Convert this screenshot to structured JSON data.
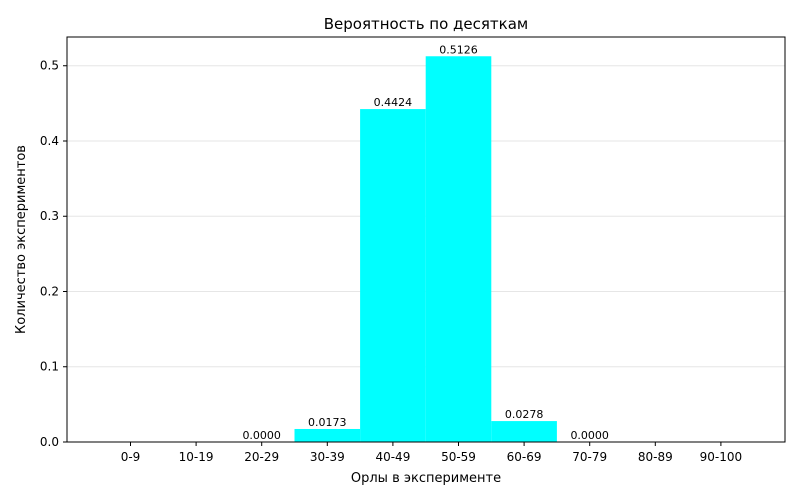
{
  "chart_data": {
    "type": "bar",
    "title": "Вероятность по десяткам",
    "xlabel": "Орлы в эксперименте",
    "ylabel": "Количество экспериментов",
    "categories": [
      "0-9",
      "10-19",
      "20-29",
      "30-39",
      "40-49",
      "50-59",
      "60-69",
      "70-79",
      "80-89",
      "90-100"
    ],
    "values": [
      0,
      0,
      0.0,
      0.0173,
      0.4424,
      0.5126,
      0.0278,
      0.0,
      0,
      0
    ],
    "value_labels": [
      "",
      "",
      "0.0000",
      "0.0173",
      "0.4424",
      "0.5126",
      "0.0278",
      "0.0000",
      "",
      ""
    ],
    "ylim": [
      0,
      0.5382
    ],
    "yticks": [
      0.0,
      0.1,
      0.2,
      0.3,
      0.4,
      0.5
    ],
    "ytick_labels": [
      "0.0",
      "0.1",
      "0.2",
      "0.3",
      "0.4",
      "0.5"
    ],
    "grid": {
      "y": true,
      "x": false
    },
    "bar_color": "#00ffff",
    "grid_color": "#e6e6e6",
    "axis_color": "#000000"
  }
}
